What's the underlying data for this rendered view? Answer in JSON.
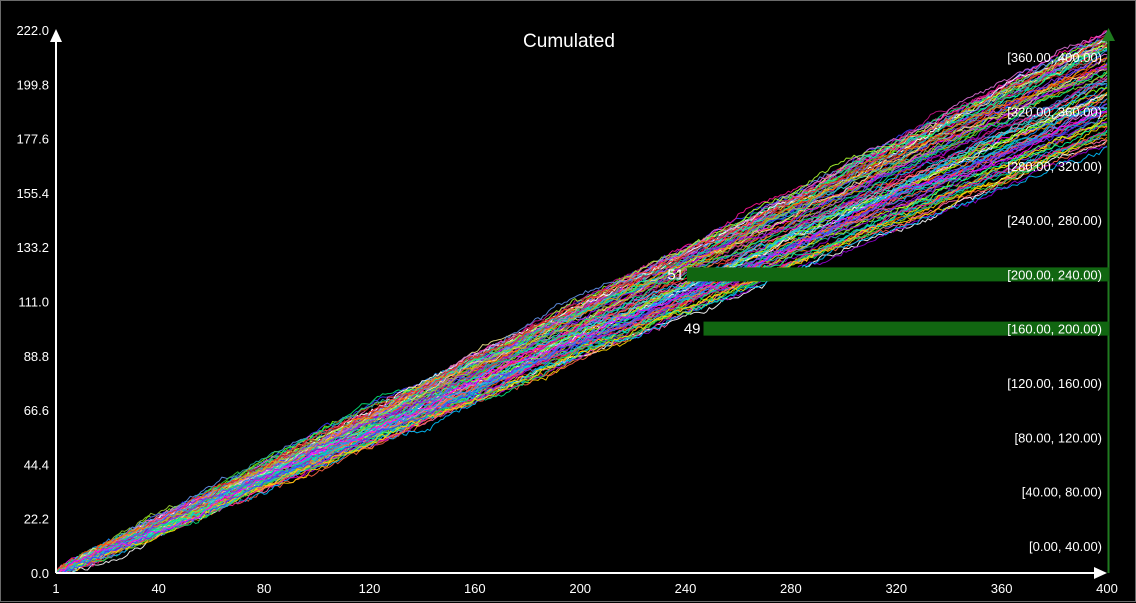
{
  "chart_data": {
    "type": "line",
    "title": "Cumulated",
    "xlabel": "",
    "ylabel": "",
    "xlim": [
      1,
      400
    ],
    "ylim": [
      0.0,
      222.0
    ],
    "x_ticks": [
      "1",
      "40",
      "80",
      "120",
      "160",
      "200",
      "240",
      "280",
      "320",
      "360",
      "400"
    ],
    "y_ticks": [
      "0.0",
      "22.2",
      "44.4",
      "66.6",
      "88.8",
      "111.0",
      "133.2",
      "155.4",
      "177.6",
      "199.8",
      "222.0"
    ],
    "series_count": 100,
    "series_note": "100 random-walk series, each cumulative sum of random increments, ending between ~176 and ~222 at step 400",
    "grid": false,
    "legend": "none",
    "end_distribution": {
      "type": "histogram",
      "orientation": "horizontal",
      "bins": [
        {
          "label": "[0.00, 40.00)",
          "count": 0
        },
        {
          "label": "[40.00, 80.00)",
          "count": 0
        },
        {
          "label": "[80.00, 120.00)",
          "count": 0
        },
        {
          "label": "[120.00, 160.00)",
          "count": 0
        },
        {
          "label": "[160.00, 200.00)",
          "count": 49
        },
        {
          "label": "[200.00, 240.00)",
          "count": 51
        },
        {
          "label": "[240.00, 280.00)",
          "count": 0
        },
        {
          "label": "[280.00, 320.00)",
          "count": 0
        },
        {
          "label": "[320.00, 360.00)",
          "count": 0
        },
        {
          "label": "[360.00, 400.00)",
          "count": 0
        }
      ],
      "bar_color": "#116611"
    },
    "colors": {
      "background": "#000000",
      "axis": "#ffffff",
      "histogram_axis": "#1f7a1f"
    }
  }
}
